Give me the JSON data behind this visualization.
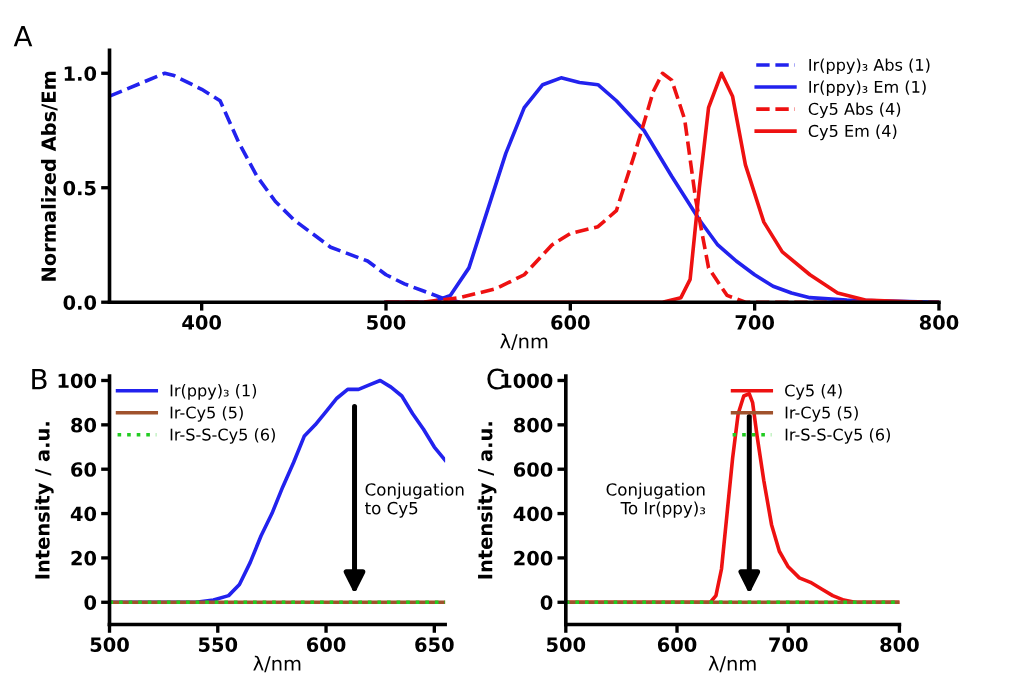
{
  "chart_data": [
    {
      "type": "line",
      "title": "A",
      "xlabel": "λ/nm",
      "ylabel": "Normalized Abs/Em",
      "xlim": [
        350,
        800
      ],
      "ylim": [
        0,
        1.1
      ],
      "xticks": [
        400,
        500,
        600,
        700,
        800
      ],
      "yticks": [
        {
          "value": 0,
          "label": "0.0"
        },
        0.5,
        {
          "value": 1.0,
          "label": "1.0"
        }
      ],
      "legend": "top right",
      "grid": false,
      "series": [
        {
          "name": "Ir(ppy)₃ Abs (1)",
          "color": "#2222ee",
          "line_style": "dashed",
          "x": [
            350,
            365,
            380,
            385,
            400,
            410,
            420,
            430,
            440,
            450,
            460,
            470,
            480,
            490,
            500,
            510,
            520,
            530,
            540
          ],
          "values": [
            0.9,
            0.95,
            1.0,
            0.99,
            0.93,
            0.88,
            0.7,
            0.55,
            0.44,
            0.36,
            0.3,
            0.24,
            0.21,
            0.18,
            0.12,
            0.08,
            0.05,
            0.02,
            0.0
          ]
        },
        {
          "name": "Ir(ppy)₃ Em (1)",
          "color": "#2222ee",
          "line_style": "solid",
          "x": [
            500,
            525,
            535,
            545,
            555,
            565,
            575,
            585,
            595,
            605,
            615,
            625,
            640,
            655,
            670,
            680,
            690,
            700,
            710,
            720,
            730,
            750,
            800
          ],
          "values": [
            0,
            0,
            0.03,
            0.15,
            0.4,
            0.65,
            0.85,
            0.95,
            0.98,
            0.96,
            0.95,
            0.88,
            0.75,
            0.55,
            0.36,
            0.25,
            0.18,
            0.12,
            0.07,
            0.04,
            0.02,
            0.01,
            0
          ]
        },
        {
          "name": "Cy5 Abs (4)",
          "color": "#ee1111",
          "line_style": "dashed",
          "x": [
            500,
            520,
            540,
            560,
            575,
            590,
            600,
            615,
            625,
            635,
            645,
            650,
            655,
            662,
            668,
            675,
            685,
            695,
            800
          ],
          "values": [
            0,
            0,
            0.02,
            0.06,
            0.12,
            0.25,
            0.3,
            0.33,
            0.4,
            0.65,
            0.92,
            1.0,
            0.97,
            0.8,
            0.45,
            0.15,
            0.03,
            0,
            0
          ]
        },
        {
          "name": "Cy5 Em (4)",
          "color": "#ee1111",
          "line_style": "solid",
          "x": [
            500,
            650,
            660,
            665,
            670,
            675,
            682,
            688,
            695,
            705,
            715,
            730,
            745,
            760,
            790
          ],
          "values": [
            0,
            0,
            0.02,
            0.1,
            0.5,
            0.85,
            1.0,
            0.9,
            0.6,
            0.35,
            0.22,
            0.12,
            0.04,
            0.01,
            0
          ]
        }
      ]
    },
    {
      "type": "line",
      "title": "B",
      "xlabel": "λ/nm",
      "ylabel": "Intensity / a.u.",
      "xlim": [
        500,
        655
      ],
      "ylim": [
        -10,
        102
      ],
      "xticks": [
        500,
        550,
        600,
        650
      ],
      "yticks": [
        0,
        20,
        40,
        60,
        80,
        100
      ],
      "legend": "top left",
      "grid": false,
      "annotations": [
        "Conjugation\nto Cy5"
      ],
      "series": [
        {
          "name": "Ir(ppy)₃ (1)",
          "color": "#2222ee",
          "line_style": "solid",
          "x": [
            500,
            540,
            548,
            555,
            560,
            565,
            570,
            575,
            580,
            585,
            590,
            595,
            600,
            605,
            610,
            615,
            620,
            625,
            630,
            635,
            640,
            645,
            650,
            655
          ],
          "values": [
            0,
            0,
            1,
            3,
            8,
            18,
            30,
            40,
            52,
            63,
            75,
            80,
            86,
            92,
            96,
            96,
            98,
            100,
            97,
            93,
            85,
            78,
            70,
            64
          ]
        },
        {
          "name": "Ir-Cy5 (5)",
          "color": "#a0522d",
          "line_style": "solid",
          "x": [
            500,
            655
          ],
          "values": [
            0,
            0
          ]
        },
        {
          "name": "Ir-S-S-Cy5 (6)",
          "color": "#22cc22",
          "line_style": "dotted",
          "x": [
            500,
            655
          ],
          "values": [
            0,
            0
          ]
        }
      ]
    },
    {
      "type": "line",
      "title": "C",
      "xlabel": "λ/nm",
      "ylabel": "Intensity / a.u.",
      "xlim": [
        500,
        800
      ],
      "ylim": [
        -100,
        1020
      ],
      "xticks": [
        500,
        600,
        700,
        800
      ],
      "yticks": [
        0,
        200,
        400,
        600,
        800,
        1000
      ],
      "legend": "top right",
      "grid": false,
      "annotations": [
        "Conjugation\nTo Ir(ppy)₃"
      ],
      "series": [
        {
          "name": "Cy5 (4)",
          "color": "#ee1111",
          "line_style": "solid",
          "x": [
            500,
            630,
            635,
            640,
            645,
            650,
            655,
            660,
            665,
            668,
            672,
            678,
            685,
            692,
            700,
            710,
            720,
            730,
            740,
            750,
            760,
            800
          ],
          "values": [
            0,
            0,
            30,
            150,
            400,
            650,
            850,
            930,
            940,
            900,
            750,
            550,
            350,
            230,
            160,
            110,
            90,
            60,
            30,
            10,
            0,
            0
          ]
        },
        {
          "name": "Ir-Cy5 (5)",
          "color": "#a0522d",
          "line_style": "solid",
          "x": [
            500,
            800
          ],
          "values": [
            0,
            0
          ]
        },
        {
          "name": "Ir-S-S-Cy5 (6)",
          "color": "#22cc22",
          "line_style": "dotted",
          "x": [
            500,
            800
          ],
          "values": [
            0,
            0
          ]
        }
      ]
    }
  ]
}
